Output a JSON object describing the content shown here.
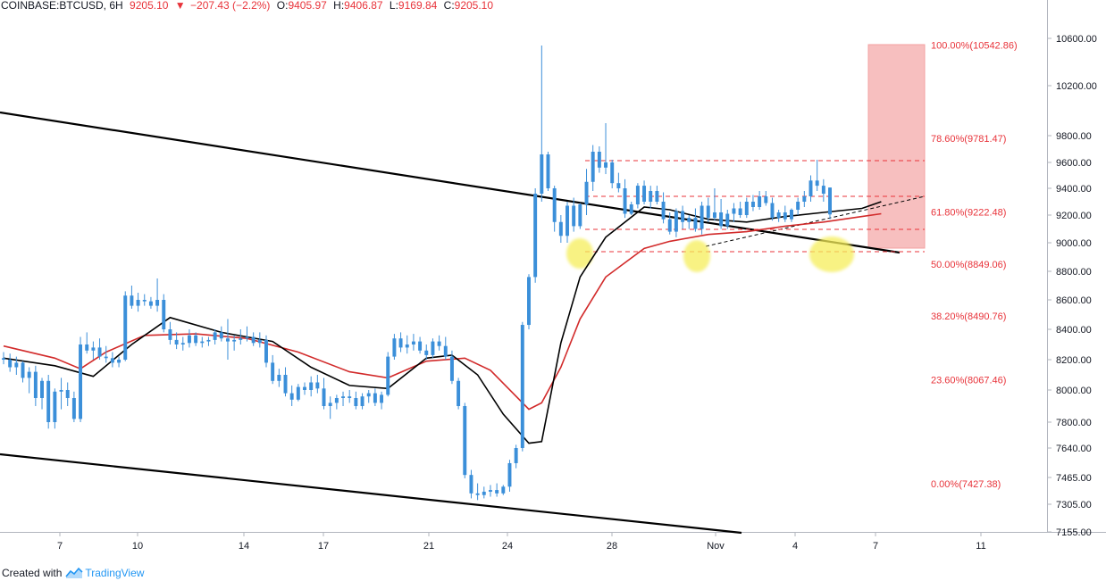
{
  "header": {
    "symbol": "COINBASE:BTCUSD, 6H",
    "last": "9205.10",
    "change_arrow": "▼",
    "change": "−207.43 (−2.2%)",
    "open_label": "O:",
    "open": "9405.97",
    "high_label": "H:",
    "high": "9406.87",
    "low_label": "L:",
    "low": "9169.84",
    "close_label": "C:",
    "close": "9205.10",
    "down_color": "#e8333a"
  },
  "footer": {
    "created_with": "Created with",
    "brand": "TradingView",
    "brand_icon": "tradingview-logo-icon"
  },
  "chart_data": {
    "type": "candlestick",
    "y_ticks": [
      "10600.00",
      "10200.00",
      "9800.00",
      "9600.00",
      "9400.00",
      "9200.00",
      "9000.00",
      "8800.00",
      "8600.00",
      "8400.00",
      "8200.00",
      "8000.00",
      "7800.00",
      "7640.00",
      "7465.00",
      "7305.00",
      "7155.00"
    ],
    "x_ticks": [
      "7",
      "10",
      "14",
      "17",
      "21",
      "24",
      "28",
      "Nov",
      "4",
      "7",
      "11"
    ],
    "fib_levels": [
      {
        "label": "100.00%(10542.86)",
        "value": 10542.86
      },
      {
        "label": "78.60%(9781.47)",
        "value": 9781.47
      },
      {
        "label": "61.80%(9222.48)",
        "value": 9222.48
      },
      {
        "label": "50.00%(8849.06)",
        "value": 8849.06
      },
      {
        "label": "38.20%(8490.76)",
        "value": 8490.76
      },
      {
        "label": "23.60%(8067.46)",
        "value": 8067.46
      },
      {
        "label": "0.00%(7427.38)",
        "value": 7427.38
      }
    ],
    "colors": {
      "up": "#3b8fd9",
      "down": "#3b8fd9",
      "ma_fast": "#000000",
      "ma_slow": "#d22b2b",
      "fib": "#e8333a",
      "target_box": "#f5b3b3",
      "highlight": "#f5f06e"
    },
    "candles_approx": [
      [
        8210,
        8250,
        8170,
        8200
      ],
      [
        8200,
        8240,
        8120,
        8150
      ],
      [
        8150,
        8220,
        8100,
        8180
      ],
      [
        8180,
        8190,
        8050,
        8080
      ],
      [
        8080,
        8150,
        7980,
        8120
      ],
      [
        8120,
        8160,
        7900,
        7950
      ],
      [
        7950,
        8080,
        7880,
        8060
      ],
      [
        8060,
        8100,
        7760,
        7800
      ],
      [
        7800,
        8010,
        7760,
        7990
      ],
      [
        7990,
        8080,
        7880,
        8000
      ],
      [
        8000,
        8050,
        7900,
        7950
      ],
      [
        7950,
        7990,
        7800,
        7820
      ],
      [
        7820,
        8350,
        7800,
        8300
      ],
      [
        8300,
        8380,
        8240,
        8260
      ],
      [
        8260,
        8320,
        8200,
        8280
      ],
      [
        8280,
        8340,
        8200,
        8220
      ],
      [
        8220,
        8290,
        8180,
        8210
      ],
      [
        8210,
        8250,
        8150,
        8180
      ],
      [
        8180,
        8220,
        8150,
        8200
      ],
      [
        8200,
        8660,
        8190,
        8630
      ],
      [
        8630,
        8700,
        8540,
        8560
      ],
      [
        8560,
        8650,
        8520,
        8600
      ],
      [
        8600,
        8640,
        8560,
        8590
      ],
      [
        8590,
        8620,
        8540,
        8560
      ],
      [
        8560,
        8750,
        8520,
        8600
      ],
      [
        8600,
        8640,
        8380,
        8400
      ],
      [
        8400,
        8450,
        8300,
        8330
      ],
      [
        8330,
        8380,
        8270,
        8300
      ],
      [
        8300,
        8350,
        8260,
        8310
      ],
      [
        8310,
        8400,
        8280,
        8360
      ],
      [
        8360,
        8380,
        8290,
        8310
      ],
      [
        8310,
        8350,
        8280,
        8320
      ],
      [
        8320,
        8350,
        8290,
        8330
      ],
      [
        8330,
        8400,
        8300,
        8380
      ],
      [
        8380,
        8420,
        8320,
        8340
      ],
      [
        8340,
        8470,
        8200,
        8320
      ],
      [
        8320,
        8360,
        8260,
        8330
      ],
      [
        8330,
        8400,
        8300,
        8340
      ],
      [
        8340,
        8420,
        8320,
        8350
      ],
      [
        8350,
        8380,
        8290,
        8310
      ],
      [
        8310,
        8380,
        8280,
        8330
      ],
      [
        8330,
        8360,
        8150,
        8180
      ],
      [
        8180,
        8230,
        8040,
        8060
      ],
      [
        8060,
        8140,
        8020,
        8100
      ],
      [
        8100,
        8150,
        7960,
        7980
      ],
      [
        7980,
        8030,
        7900,
        7940
      ],
      [
        7940,
        8040,
        7930,
        8020
      ],
      [
        8020,
        8050,
        7970,
        8000
      ],
      [
        8000,
        8090,
        7960,
        8050
      ],
      [
        8050,
        8100,
        7980,
        8010
      ],
      [
        8010,
        8080,
        7880,
        7900
      ],
      [
        7900,
        7960,
        7820,
        7920
      ],
      [
        7920,
        7970,
        7880,
        7950
      ],
      [
        7950,
        7990,
        7900,
        7960
      ],
      [
        7960,
        8000,
        7920,
        7950
      ],
      [
        7950,
        7990,
        7880,
        7900
      ],
      [
        7900,
        7980,
        7880,
        7960
      ],
      [
        7960,
        8000,
        7920,
        7980
      ],
      [
        7980,
        8010,
        7900,
        7920
      ],
      [
        7920,
        7990,
        7880,
        7970
      ],
      [
        7970,
        8250,
        7960,
        8220
      ],
      [
        8220,
        8370,
        8200,
        8340
      ],
      [
        8340,
        8380,
        8250,
        8280
      ],
      [
        8280,
        8360,
        8240,
        8300
      ],
      [
        8300,
        8370,
        8260,
        8320
      ],
      [
        8320,
        8350,
        8240,
        8260
      ],
      [
        8260,
        8300,
        8200,
        8230
      ],
      [
        8230,
        8340,
        8210,
        8320
      ],
      [
        8320,
        8360,
        8260,
        8290
      ],
      [
        8290,
        8350,
        8200,
        8220
      ],
      [
        8220,
        8260,
        8040,
        8060
      ],
      [
        8060,
        8080,
        7880,
        7900
      ],
      [
        7900,
        7920,
        7460,
        7480
      ],
      [
        7480,
        7510,
        7340,
        7370
      ],
      [
        7370,
        7430,
        7330,
        7360
      ],
      [
        7360,
        7410,
        7340,
        7380
      ],
      [
        7380,
        7420,
        7350,
        7390
      ],
      [
        7390,
        7430,
        7350,
        7370
      ],
      [
        7370,
        7420,
        7360,
        7410
      ],
      [
        7410,
        7570,
        7380,
        7550
      ],
      [
        7550,
        7660,
        7520,
        7640
      ],
      [
        7640,
        8450,
        7620,
        8430
      ],
      [
        8430,
        8780,
        8400,
        8760
      ],
      [
        8760,
        9400,
        8720,
        9360
      ],
      [
        9360,
        10540,
        9300,
        9660
      ],
      [
        9660,
        9680,
        9380,
        9400
      ],
      [
        9400,
        9420,
        9080,
        9150
      ],
      [
        9150,
        9200,
        9000,
        9050
      ],
      [
        9050,
        9300,
        9000,
        9270
      ],
      [
        9270,
        9330,
        9080,
        9120
      ],
      [
        9120,
        9290,
        9100,
        9280
      ],
      [
        9280,
        9550,
        9200,
        9450
      ],
      [
        9450,
        9730,
        9380,
        9680
      ],
      [
        9680,
        9720,
        9520,
        9560
      ],
      [
        9560,
        9900,
        9510,
        9600
      ],
      [
        9600,
        9620,
        9400,
        9440
      ],
      [
        9440,
        9520,
        9370,
        9400
      ],
      [
        9400,
        9470,
        9180,
        9210
      ],
      [
        9210,
        9300,
        9200,
        9280
      ],
      [
        9280,
        9440,
        9250,
        9420
      ],
      [
        9420,
        9460,
        9280,
        9300
      ],
      [
        9300,
        9420,
        9250,
        9380
      ],
      [
        9380,
        9420,
        9280,
        9300
      ],
      [
        9300,
        9370,
        9140,
        9170
      ],
      [
        9170,
        9220,
        9060,
        9080
      ],
      [
        9080,
        9250,
        9040,
        9230
      ],
      [
        9230,
        9270,
        9100,
        9150
      ],
      [
        9150,
        9200,
        9100,
        9180
      ],
      [
        9180,
        9250,
        9080,
        9100
      ],
      [
        9100,
        9300,
        9060,
        9270
      ],
      [
        9270,
        9330,
        9150,
        9180
      ],
      [
        9180,
        9400,
        9160,
        9220
      ],
      [
        9220,
        9320,
        9100,
        9120
      ],
      [
        9120,
        9240,
        9100,
        9210
      ],
      [
        9210,
        9290,
        9150,
        9250
      ],
      [
        9250,
        9300,
        9180,
        9200
      ],
      [
        9200,
        9330,
        9180,
        9300
      ],
      [
        9300,
        9350,
        9230,
        9260
      ],
      [
        9260,
        9380,
        9240,
        9340
      ],
      [
        9340,
        9380,
        9270,
        9290
      ],
      [
        9290,
        9330,
        9160,
        9180
      ],
      [
        9180,
        9240,
        9150,
        9220
      ],
      [
        9220,
        9270,
        9150,
        9170
      ],
      [
        9170,
        9250,
        9150,
        9240
      ],
      [
        9240,
        9330,
        9200,
        9300
      ],
      [
        9300,
        9380,
        9260,
        9340
      ],
      [
        9340,
        9500,
        9300,
        9460
      ],
      [
        9460,
        9620,
        9380,
        9420
      ],
      [
        9420,
        9470,
        9300,
        9360
      ],
      [
        9405.97,
        9406.87,
        9169.84,
        9205.1
      ]
    ],
    "ma_fast_approx": [
      [
        0,
        8210
      ],
      [
        8,
        8160
      ],
      [
        14,
        8090
      ],
      [
        20,
        8300
      ],
      [
        26,
        8480
      ],
      [
        34,
        8380
      ],
      [
        42,
        8320
      ],
      [
        48,
        8150
      ],
      [
        54,
        8030
      ],
      [
        60,
        8010
      ],
      [
        66,
        8210
      ],
      [
        70,
        8230
      ],
      [
        74,
        8100
      ],
      [
        78,
        7850
      ],
      [
        82,
        7670
      ],
      [
        84,
        7680
      ],
      [
        87,
        8310
      ],
      [
        90,
        8760
      ],
      [
        94,
        9040
      ],
      [
        100,
        9260
      ],
      [
        104,
        9240
      ],
      [
        110,
        9170
      ],
      [
        116,
        9150
      ],
      [
        122,
        9190
      ],
      [
        128,
        9220
      ],
      [
        134,
        9250
      ],
      [
        137,
        9300
      ]
    ],
    "ma_slow_approx": [
      [
        0,
        8290
      ],
      [
        8,
        8210
      ],
      [
        12,
        8140
      ],
      [
        16,
        8250
      ],
      [
        22,
        8360
      ],
      [
        30,
        8370
      ],
      [
        38,
        8340
      ],
      [
        46,
        8250
      ],
      [
        54,
        8120
      ],
      [
        60,
        8080
      ],
      [
        66,
        8190
      ],
      [
        72,
        8210
      ],
      [
        76,
        8130
      ],
      [
        82,
        7880
      ],
      [
        84,
        7920
      ],
      [
        87,
        8150
      ],
      [
        90,
        8470
      ],
      [
        94,
        8760
      ],
      [
        100,
        8960
      ],
      [
        104,
        9010
      ],
      [
        110,
        9060
      ],
      [
        116,
        9080
      ],
      [
        122,
        9120
      ],
      [
        128,
        9150
      ],
      [
        134,
        9190
      ],
      [
        137,
        9210
      ]
    ]
  }
}
